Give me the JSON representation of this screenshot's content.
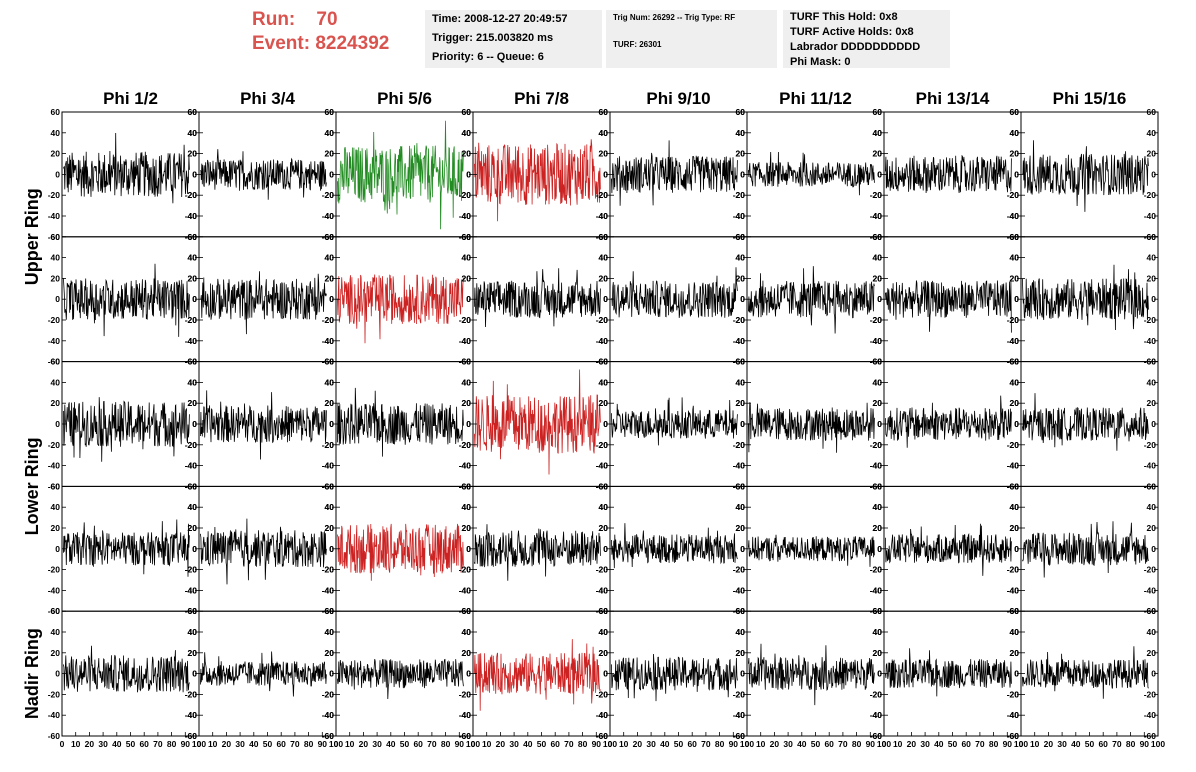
{
  "header": {
    "run_label": "Run:",
    "run_value": "70",
    "event_label": "Event:",
    "event_value": "8224392",
    "time": "Time: 2008-12-27 20:49:57",
    "trigger": "Trigger: 215.003820 ms",
    "priority_queue": "Priority: 6 -- Queue: 6",
    "trig_num_type": "Trig Num: 26292 -- Trig Type: RF",
    "turf": "TURF: 26301",
    "turf_this_hold": "TURF This Hold: 0x8",
    "turf_active_holds": "TURF Active Holds: 0x8",
    "labrador": "Labrador DDDDDDDDDD",
    "phi_mask": "Phi Mask: 0"
  },
  "columns": [
    "Phi 1/2",
    "Phi 3/4",
    "Phi 5/6",
    "Phi 7/8",
    "Phi 9/10",
    "Phi 11/12",
    "Phi 13/14",
    "Phi 15/16"
  ],
  "row_groups": [
    "Upper Ring",
    "Lower Ring",
    "Nadir Ring"
  ],
  "colors": {
    "normal": "#000000",
    "triggered": "#cc2222",
    "highlight": "#228b22",
    "event_text": "#d9534f"
  },
  "chart_data": {
    "type": "line",
    "description_rows": 5,
    "description_cols": 8,
    "xlim": [
      0,
      100
    ],
    "ylim": [
      -60,
      60
    ],
    "x_ticks": [
      0,
      10,
      20,
      30,
      40,
      50,
      60,
      70,
      80,
      90,
      100
    ],
    "x_tick_labels": [
      "0",
      "10",
      "20",
      "30",
      "40",
      "50",
      "60",
      "70",
      "80",
      "90",
      "100"
    ],
    "y_ticks": [
      60,
      40,
      20,
      0,
      -20,
      -40,
      -60
    ],
    "y_tick_labels": [
      "60",
      "40",
      "20",
      "0",
      "-20",
      "-40",
      "-60"
    ],
    "panel_colors": [
      [
        "normal",
        "normal",
        "highlight",
        "triggered",
        "normal",
        "normal",
        "normal",
        "normal"
      ],
      [
        "normal",
        "normal",
        "triggered",
        "normal",
        "normal",
        "normal",
        "normal",
        "normal"
      ],
      [
        "normal",
        "normal",
        "normal",
        "triggered",
        "normal",
        "normal",
        "normal",
        "normal"
      ],
      [
        "normal",
        "normal",
        "triggered",
        "normal",
        "normal",
        "normal",
        "normal",
        "normal"
      ],
      [
        "normal",
        "normal",
        "normal",
        "triggered",
        "normal",
        "normal",
        "normal",
        "normal"
      ]
    ],
    "panel_amplitude": [
      [
        22,
        15,
        28,
        30,
        18,
        12,
        18,
        20
      ],
      [
        20,
        20,
        24,
        18,
        18,
        18,
        18,
        20
      ],
      [
        22,
        18,
        20,
        28,
        14,
        16,
        16,
        16
      ],
      [
        16,
        18,
        24,
        18,
        14,
        12,
        14,
        16
      ],
      [
        18,
        12,
        14,
        20,
        16,
        16,
        14,
        14
      ]
    ]
  }
}
